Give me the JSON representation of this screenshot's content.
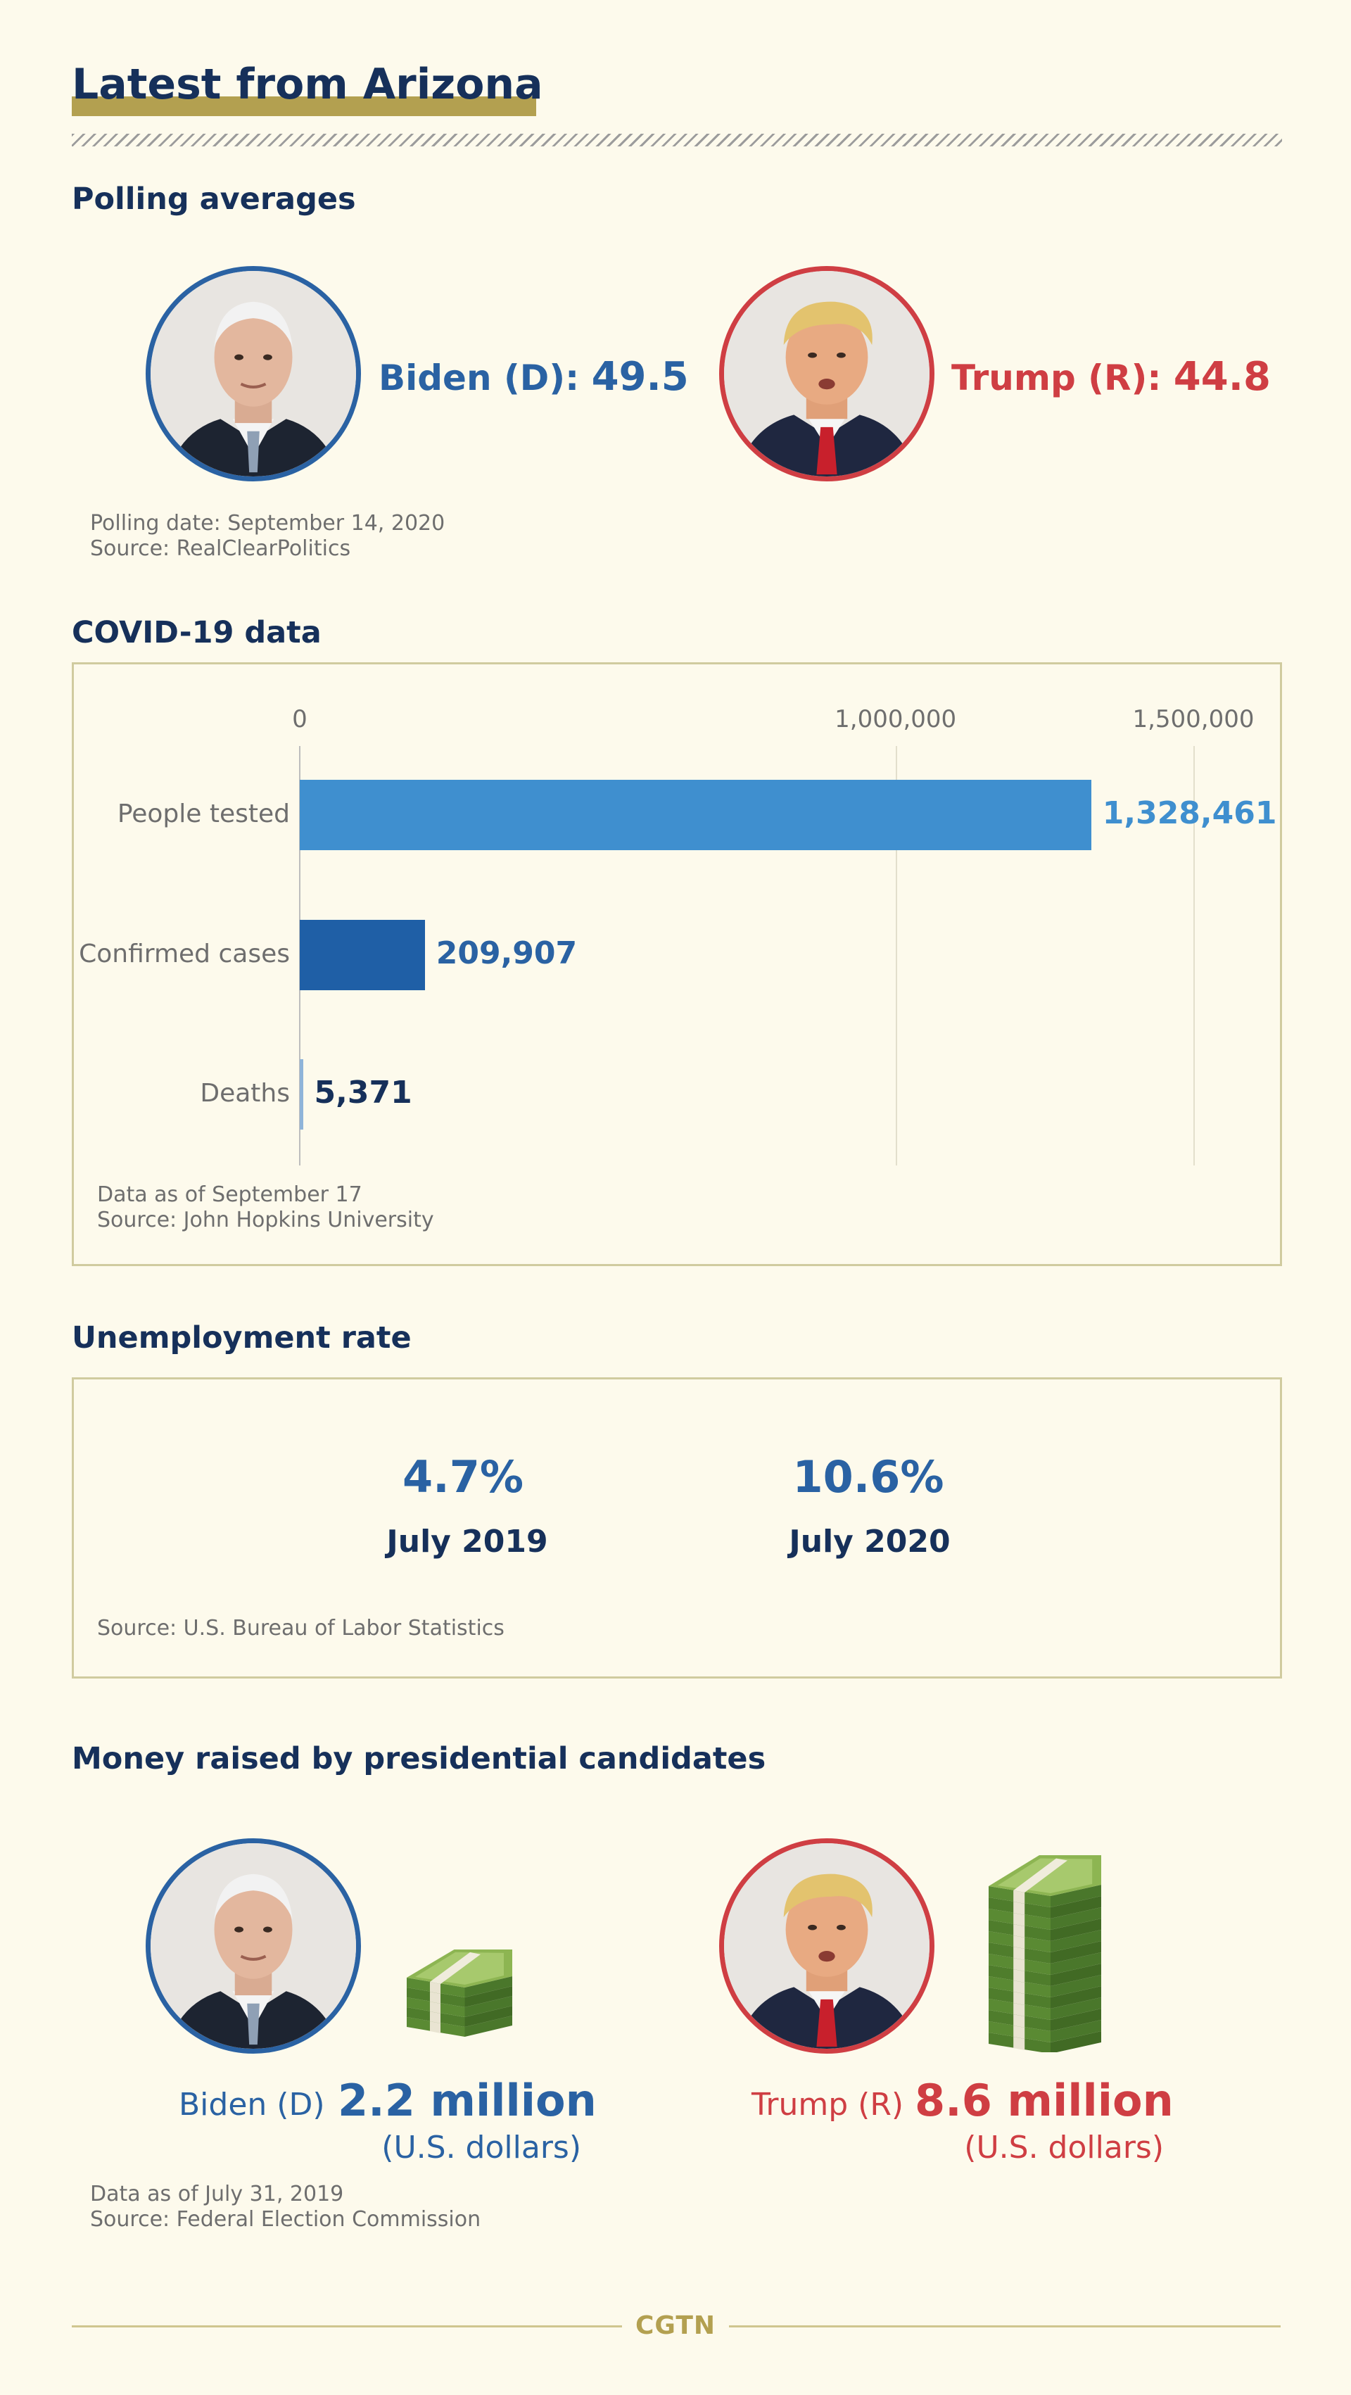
{
  "header": {
    "title": "Latest from Arizona"
  },
  "polling": {
    "section_title": "Polling averages",
    "biden": {
      "label": "Biden (D): ",
      "value": "49.5"
    },
    "trump": {
      "label": "Trump (R): ",
      "value": "44.8"
    },
    "note_date": "Polling date: September 14, 2020",
    "note_source": "Source: RealClearPolitics"
  },
  "covid": {
    "section_title": "COVID-19 data",
    "note_date": "Data as of September 17",
    "note_source": "Source: John Hopkins University"
  },
  "chart_data": {
    "type": "bar",
    "orientation": "horizontal",
    "categories": [
      "People tested",
      "Confirmed cases",
      "Deaths"
    ],
    "values": [
      1328461,
      209907,
      5371
    ],
    "value_labels": [
      "1,328,461",
      "209,907",
      "5,371"
    ],
    "xlim": [
      0,
      1500000
    ],
    "ticks": [
      0,
      1000000,
      1500000
    ],
    "tick_labels": [
      "0",
      "1,000,000",
      "1,500,000"
    ],
    "grid": true,
    "colors": [
      "#3f8fcf",
      "#1f5fa6",
      "#8fb4d9"
    ],
    "label_colors": [
      "#3f8fcf",
      "#2a62a3",
      "#16305a"
    ]
  },
  "unemployment": {
    "section_title": "Unemployment rate",
    "items": [
      {
        "value": "4.7%",
        "label": "July 2019"
      },
      {
        "value": "10.6%",
        "label": "July 2020"
      }
    ],
    "note_source": "Source: U.S. Bureau of Labor Statistics"
  },
  "money": {
    "section_title": "Money raised by presidential candidates",
    "biden": {
      "name": "Biden (D)",
      "amount": "2.2 million",
      "unit": "(U.S. dollars)"
    },
    "trump": {
      "name": "Trump (R)",
      "amount": "8.6 million",
      "unit": "(U.S. dollars)"
    },
    "note_date": "Data as of July 31, 2019",
    "note_source": "Source: Federal Election Commission"
  },
  "footer": {
    "brand": "CGTN"
  },
  "colors": {
    "navy": "#16305a",
    "democrat_blue": "#2a62a3",
    "republican_red": "#cf3e43",
    "accent_gold": "#b3a050",
    "background": "#fdfaec",
    "money_green": "#6f9a3e"
  },
  "icons": [
    "biden-portrait",
    "trump-portrait",
    "money-stack-icon"
  ]
}
